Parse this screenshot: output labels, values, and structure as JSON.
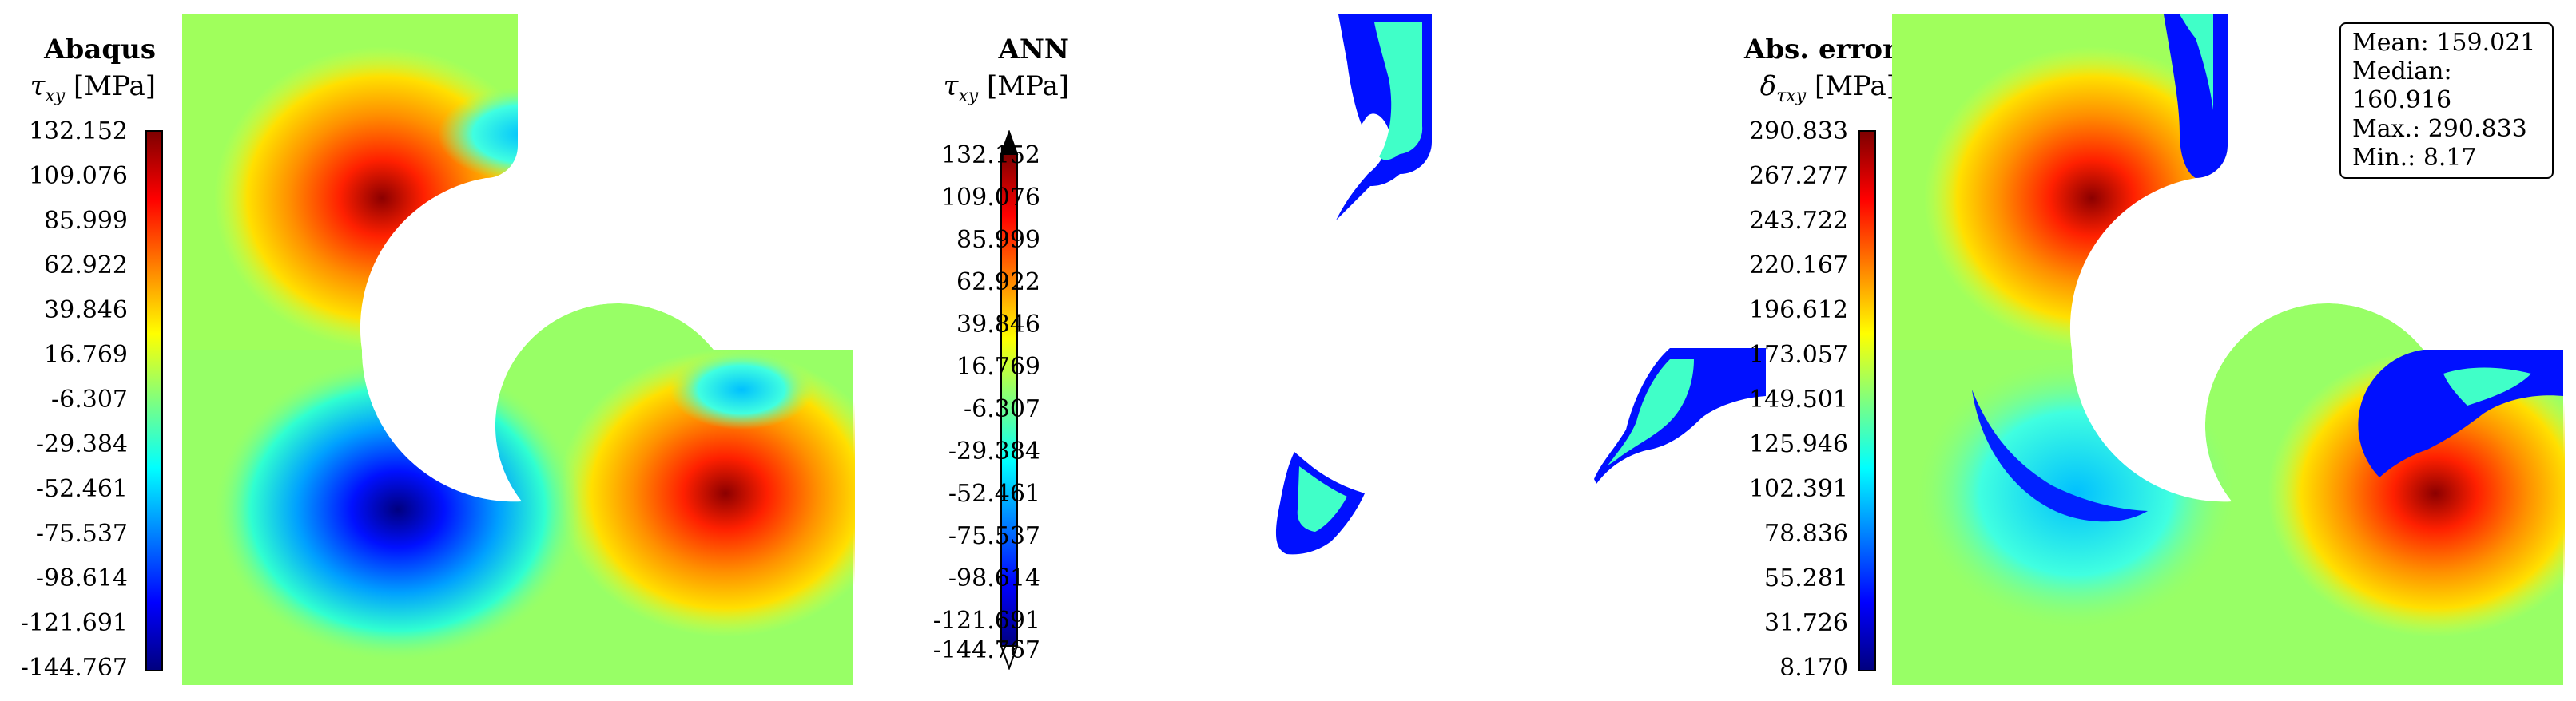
{
  "panels": [
    {
      "title": "Abaqus",
      "symbol": "τ",
      "subscript": "xy",
      "unit": "[MPa]",
      "ticks": [
        "132.152",
        "109.076",
        "85.999",
        "62.922",
        "39.846",
        "16.769",
        "-6.307",
        "-29.384",
        "-52.461",
        "-75.537",
        "-98.614",
        "-121.691",
        "-144.767"
      ]
    },
    {
      "title": "ANN",
      "symbol": "τ",
      "subscript": "xy",
      "unit": "[MPa]",
      "ticks": [
        "132.152",
        "109.076",
        "85.999",
        "62.922",
        "39.846",
        "16.769",
        "-6.307",
        "-29.384",
        "-52.461",
        "-75.537",
        "-98.614",
        "-121.691",
        "-144.767"
      ]
    },
    {
      "title": "Abs. error",
      "symbol": "δ",
      "subscript": "τxy",
      "unit": "[MPa]",
      "ticks": [
        "290.833",
        "267.277",
        "243.722",
        "220.167",
        "196.612",
        "173.057",
        "149.501",
        "125.946",
        "102.391",
        "78.836",
        "55.281",
        "31.726",
        "8.170"
      ]
    }
  ],
  "stats": {
    "mean": "Mean: 159.021",
    "median": "Median: 160.916",
    "max": "Max.: 290.833",
    "min": "Min.: 8.17"
  },
  "chart_data": [
    {
      "type": "heatmap",
      "title": "Abaqus τxy [MPa]",
      "colormap": "jet",
      "clim": [
        -144.767,
        132.152
      ],
      "colorbar_ticks": [
        132.152,
        109.076,
        85.999,
        62.922,
        39.846,
        16.769,
        -6.307,
        -29.384,
        -52.461,
        -75.537,
        -98.614,
        -121.691,
        -144.767
      ]
    },
    {
      "type": "heatmap",
      "title": "ANN τxy [MPa]",
      "colormap": "jet",
      "clim": [
        -144.767,
        132.152
      ],
      "colorbar_extend": "both",
      "colorbar_ticks": [
        132.152,
        109.076,
        85.999,
        62.922,
        39.846,
        16.769,
        -6.307,
        -29.384,
        -52.461,
        -75.537,
        -98.614,
        -121.691,
        -144.767
      ]
    },
    {
      "type": "heatmap",
      "title": "Abs. error δτxy [MPa]",
      "colormap": "jet",
      "clim": [
        8.17,
        290.833
      ],
      "colorbar_ticks": [
        290.833,
        267.277,
        243.722,
        220.167,
        196.612,
        173.057,
        149.501,
        125.946,
        102.391,
        78.836,
        55.281,
        31.726,
        8.17
      ],
      "stats": {
        "mean": 159.021,
        "median": 160.916,
        "max": 290.833,
        "min": 8.17
      }
    }
  ]
}
